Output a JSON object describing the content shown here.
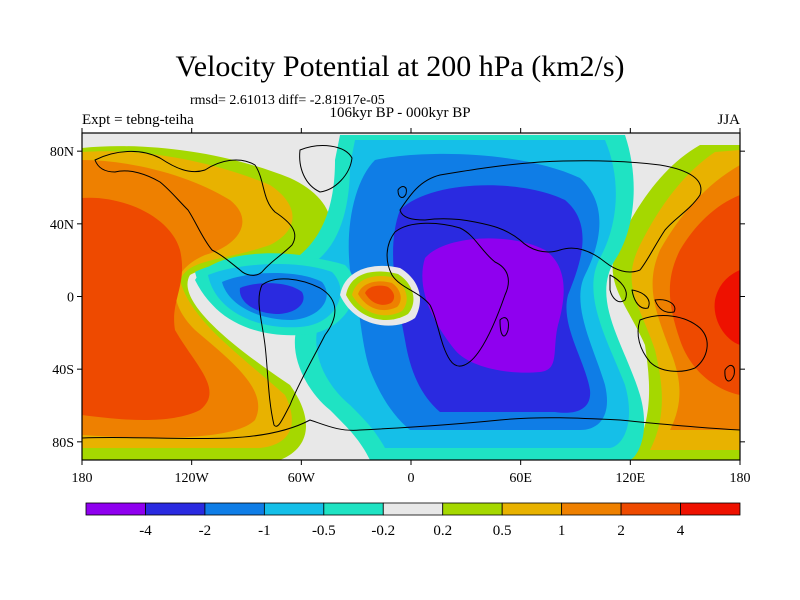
{
  "header": {
    "title": "Velocity Potential at 200 hPa (km2/s)",
    "stats": "rmsd= 2.61013 diff= -2.81917e-05",
    "experiment": "Expt = tebng-teiha",
    "subtitle": "106kyr BP - 000kyr BP",
    "season": "JJA"
  },
  "axes": {
    "lat_ticks": [
      {
        "value": 80,
        "label": "80N"
      },
      {
        "value": 40,
        "label": "40N"
      },
      {
        "value": 0,
        "label": "0"
      },
      {
        "value": -40,
        "label": "40S"
      },
      {
        "value": -80,
        "label": "80S"
      }
    ],
    "lon_ticks": [
      {
        "value": -180,
        "label": "180"
      },
      {
        "value": -120,
        "label": "120W"
      },
      {
        "value": -60,
        "label": "60W"
      },
      {
        "value": 0,
        "label": "0"
      },
      {
        "value": 60,
        "label": "60E"
      },
      {
        "value": 120,
        "label": "120E"
      },
      {
        "value": 180,
        "label": "180"
      }
    ]
  },
  "colorbar": {
    "colors": [
      "#8f00ef",
      "#2a2ae0",
      "#0f7de6",
      "#15bfe8",
      "#1fe3c3",
      "#e8e8e8",
      "#a5d800",
      "#e8b200",
      "#ee8000",
      "#ee4a00",
      "#ee1100"
    ],
    "labels": [
      "-4",
      "-2",
      "-1",
      "-0.5",
      "-0.2",
      "0.2",
      "0.5",
      "1",
      "2",
      "4"
    ]
  },
  "colors": {
    "neutral": "#e8e8e8",
    "coastline": "#000000"
  }
}
